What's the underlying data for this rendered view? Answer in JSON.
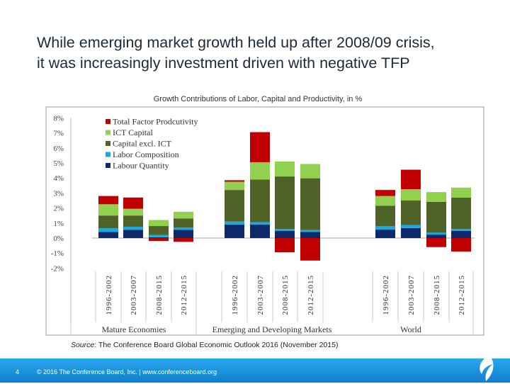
{
  "slide": {
    "title_line1": "While emerging market growth held up after 2008/09 crisis,",
    "title_line2": "it was increasingly investment driven with negative TFP",
    "source_label": "Source",
    "source_text": ": The Conference Board Global Economic Outlook 2016 (November 2015)",
    "page_number": "4",
    "footer_text": "© 2016 The Conference Board, Inc.  |  www.conferenceboard.org"
  },
  "chart_data": {
    "type": "bar",
    "stacked": true,
    "title": "Growth Contributions of Labor, Capital and Productivity, in %",
    "ylim": [
      -2,
      8
    ],
    "yticks": [
      "8%",
      "7%",
      "6%",
      "5%",
      "4%",
      "3%",
      "2%",
      "1%",
      "0%",
      "-1%",
      "-2%"
    ],
    "groups": [
      "Mature Economies",
      "Emerging and Developing Markets",
      "World"
    ],
    "categories": [
      "1996-2002",
      "2003-2007",
      "2008-2015",
      "2012-2015"
    ],
    "legend_position": "top-left",
    "series": [
      {
        "name": "Labour Quantity",
        "color": "#0c2a6a",
        "values": [
          [
            0.4,
            0.55,
            0.05,
            0.55
          ],
          [
            0.9,
            0.9,
            0.47,
            0.4
          ],
          [
            0.56,
            0.67,
            0.23,
            0.48
          ]
        ]
      },
      {
        "name": "Labor Composition",
        "color": "#17a9e1",
        "values": [
          [
            0.25,
            0.2,
            0.15,
            0.15
          ],
          [
            0.2,
            0.15,
            0.13,
            0.13
          ],
          [
            0.24,
            0.19,
            0.13,
            0.13
          ]
        ]
      },
      {
        "name": "Capital excl. ICT",
        "color": "#4f6228",
        "values": [
          [
            0.85,
            0.75,
            0.6,
            0.6
          ],
          [
            2.1,
            2.85,
            3.5,
            3.45
          ],
          [
            1.35,
            1.64,
            2.05,
            2.08
          ]
        ]
      },
      {
        "name": "ICT Capital",
        "color": "#92d050",
        "values": [
          [
            0.75,
            0.45,
            0.4,
            0.45
          ],
          [
            0.55,
            1.15,
            1.0,
            0.95
          ],
          [
            0.65,
            0.75,
            0.65,
            0.67
          ]
        ]
      },
      {
        "name": "Total Factor Prodcutivity",
        "color": "#c00000",
        "values": [
          [
            0.55,
            0.75,
            -0.2,
            -0.25
          ],
          [
            0.1,
            2.0,
            -0.95,
            -1.5
          ],
          [
            0.4,
            1.3,
            -0.6,
            -0.9
          ]
        ]
      }
    ]
  }
}
